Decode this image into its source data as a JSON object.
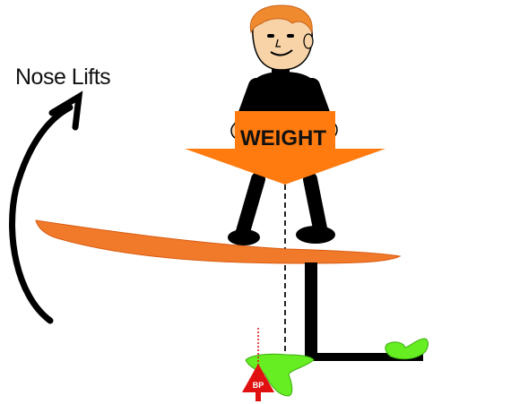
{
  "labels": {
    "nose_lifts": "Nose Lifts",
    "weight": "WEIGHT",
    "bp": "BP"
  },
  "colors": {
    "weight_arrow": "#FF7B0F",
    "board": "#F07A2A",
    "foil_wing": "#66EE22",
    "bp_marker": "#E01010",
    "skin": "#F8D3A8",
    "hair": "#F08A2E",
    "outline": "#000000"
  },
  "icons": {
    "person": "rider-figure",
    "arrow": "curved-arrow-up",
    "marker": "triangle-marker"
  }
}
